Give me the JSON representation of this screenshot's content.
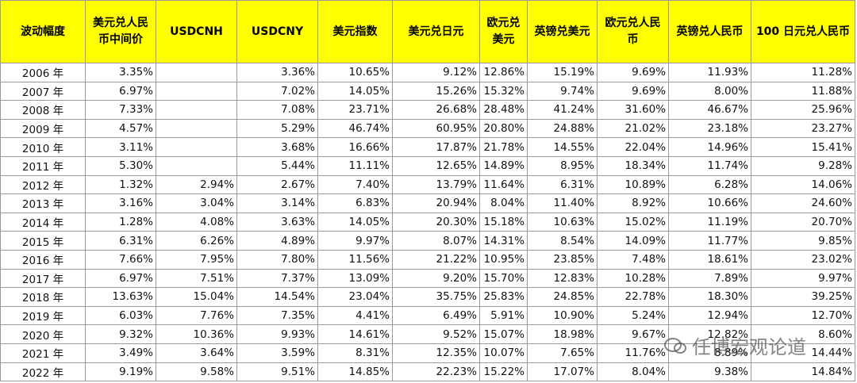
{
  "table": {
    "header": [
      "波动幅度",
      "美元兑人民币中间价",
      "USDCNH",
      "USDCNY",
      "美元指数",
      "美元兑日元",
      "欧元兑美元",
      "英镑兑美元",
      "欧元兑人民币",
      "英镑兑人民币",
      "100 日元兑人民币"
    ],
    "rows": [
      [
        "2006 年",
        "3.35%",
        null,
        "3.36%",
        "10.65%",
        "9.12%",
        "12.86%",
        "15.19%",
        "9.69%",
        "11.93%",
        "11.28%"
      ],
      [
        "2007 年",
        "6.97%",
        null,
        "7.02%",
        "14.05%",
        "15.26%",
        "15.32%",
        "9.74%",
        "9.69%",
        "8.00%",
        "11.88%"
      ],
      [
        "2008 年",
        "7.33%",
        null,
        "7.08%",
        "23.71%",
        "26.68%",
        "28.48%",
        "41.24%",
        "31.60%",
        "46.67%",
        "25.96%"
      ],
      [
        "2009 年",
        "4.57%",
        null,
        "5.29%",
        "46.74%",
        "60.95%",
        "20.80%",
        "24.88%",
        "21.02%",
        "23.18%",
        "23.27%"
      ],
      [
        "2010 年",
        "3.11%",
        null,
        "3.68%",
        "16.66%",
        "17.87%",
        "21.78%",
        "14.55%",
        "22.04%",
        "14.96%",
        "15.41%"
      ],
      [
        "2011 年",
        "5.30%",
        null,
        "5.44%",
        "11.11%",
        "12.65%",
        "14.89%",
        "8.95%",
        "18.34%",
        "11.74%",
        "9.28%"
      ],
      [
        "2012 年",
        "1.32%",
        "2.94%",
        "2.67%",
        "7.40%",
        "13.79%",
        "11.64%",
        "6.31%",
        "10.89%",
        "6.28%",
        "14.06%"
      ],
      [
        "2013 年",
        "3.16%",
        "3.04%",
        "3.14%",
        "6.83%",
        "20.94%",
        "8.04%",
        "11.40%",
        "8.92%",
        "10.66%",
        "24.60%"
      ],
      [
        "2014 年",
        "1.28%",
        "4.08%",
        "3.63%",
        "14.05%",
        "20.30%",
        "15.18%",
        "10.63%",
        "15.02%",
        "11.19%",
        "20.70%"
      ],
      [
        "2015 年",
        "6.31%",
        "6.26%",
        "4.89%",
        "9.97%",
        "8.07%",
        "14.31%",
        "8.54%",
        "14.09%",
        "11.77%",
        "9.85%"
      ],
      [
        "2016 年",
        "7.66%",
        "7.95%",
        "7.80%",
        "11.56%",
        "21.22%",
        "10.95%",
        "23.85%",
        "7.48%",
        "18.61%",
        "23.02%"
      ],
      [
        "2017 年",
        "6.97%",
        "7.51%",
        "7.37%",
        "13.09%",
        "9.20%",
        "15.70%",
        "12.83%",
        "10.28%",
        "7.89%",
        "9.97%"
      ],
      [
        "2018 年",
        "13.63%",
        "15.04%",
        "14.54%",
        "23.04%",
        "35.75%",
        "25.83%",
        "24.85%",
        "22.78%",
        "18.30%",
        "39.25%"
      ],
      [
        "2019 年",
        "6.03%",
        "7.76%",
        "7.35%",
        "4.41%",
        "6.49%",
        "5.91%",
        "10.90%",
        "5.24%",
        "12.94%",
        "12.70%"
      ],
      [
        "2020 年",
        "9.32%",
        "10.36%",
        "9.93%",
        "14.61%",
        "9.52%",
        "15.07%",
        "18.98%",
        "9.67%",
        "12.82%",
        "8.60%"
      ],
      [
        "2021 年",
        "3.49%",
        "3.64%",
        "3.59%",
        "8.31%",
        "12.35%",
        "10.07%",
        "7.65%",
        "11.76%",
        "8.89%",
        "14.44%"
      ],
      [
        "2022 年",
        "9.19%",
        "9.58%",
        "9.51%",
        "14.85%",
        "22.23%",
        "15.22%",
        "17.07%",
        "8.04%",
        "9.38%",
        "14.84%"
      ]
    ]
  },
  "watermark": "任博宏观论道"
}
